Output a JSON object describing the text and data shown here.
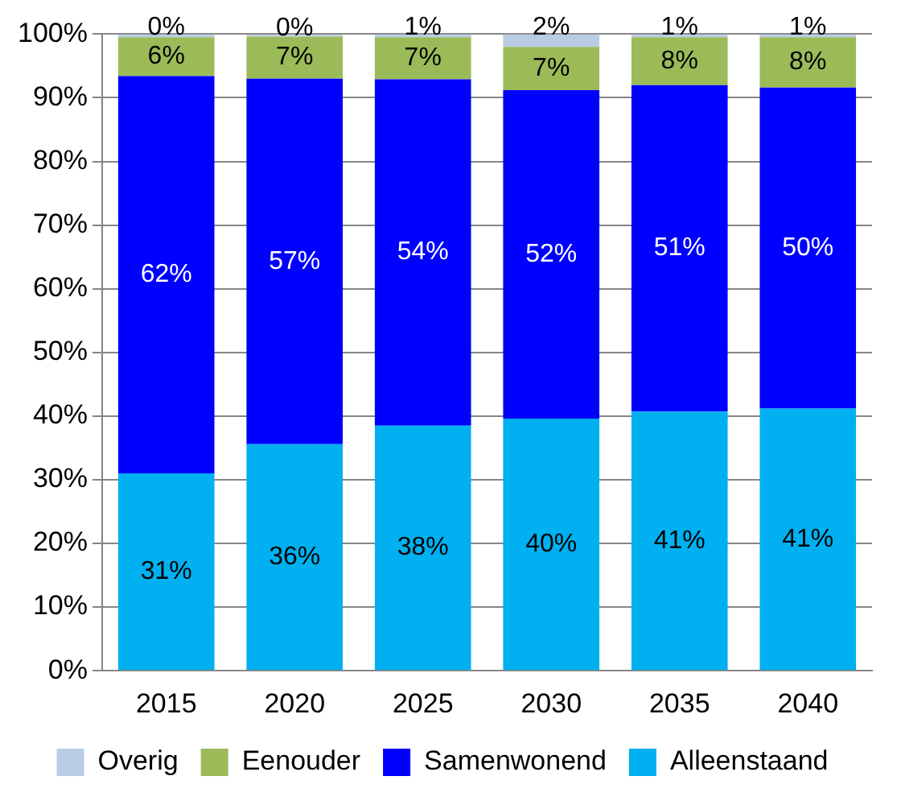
{
  "chart_data": {
    "type": "bar",
    "stacked": true,
    "categories": [
      "2015",
      "2020",
      "2025",
      "2030",
      "2035",
      "2040"
    ],
    "series": [
      {
        "name": "Alleenstaand",
        "color": "#00b0f0",
        "values": [
          31,
          35.6,
          38.5,
          39.6,
          40.7,
          41.2
        ],
        "value_labels": [
          "31%",
          "36%",
          "38%",
          "40%",
          "41%",
          "41%"
        ]
      },
      {
        "name": "Samenwonend",
        "color": "#0000ff",
        "values": [
          62.4,
          57.4,
          54.4,
          51.6,
          51.3,
          50.4
        ],
        "value_labels": [
          "62%",
          "57%",
          "54%",
          "52%",
          "51%",
          "50%"
        ]
      },
      {
        "name": "Eenouder",
        "color": "#9bbb59",
        "values": [
          6.1,
          6.6,
          6.6,
          6.8,
          7.5,
          7.9
        ],
        "value_labels": [
          "6%",
          "7%",
          "7%",
          "7%",
          "8%",
          "8%"
        ]
      },
      {
        "name": "Overig",
        "color": "#b8cce4",
        "values": [
          0.5,
          0.3,
          0.5,
          2.0,
          0.5,
          0.5
        ],
        "value_labels": [
          "0%",
          "0%",
          "1%",
          "2%",
          "1%",
          "1%"
        ]
      }
    ],
    "ylim": [
      0,
      100
    ],
    "yticks": [
      {
        "value": 0,
        "label": "0%"
      },
      {
        "value": 10,
        "label": "10%"
      },
      {
        "value": 20,
        "label": "20%"
      },
      {
        "value": 30,
        "label": "30%"
      },
      {
        "value": 40,
        "label": "40%"
      },
      {
        "value": 50,
        "label": "50%"
      },
      {
        "value": 60,
        "label": "60%"
      },
      {
        "value": 70,
        "label": "70%"
      },
      {
        "value": 80,
        "label": "80%"
      },
      {
        "value": 90,
        "label": "90%"
      },
      {
        "value": 100,
        "label": "100%"
      }
    ],
    "grid": "y",
    "legend": "bottom"
  }
}
